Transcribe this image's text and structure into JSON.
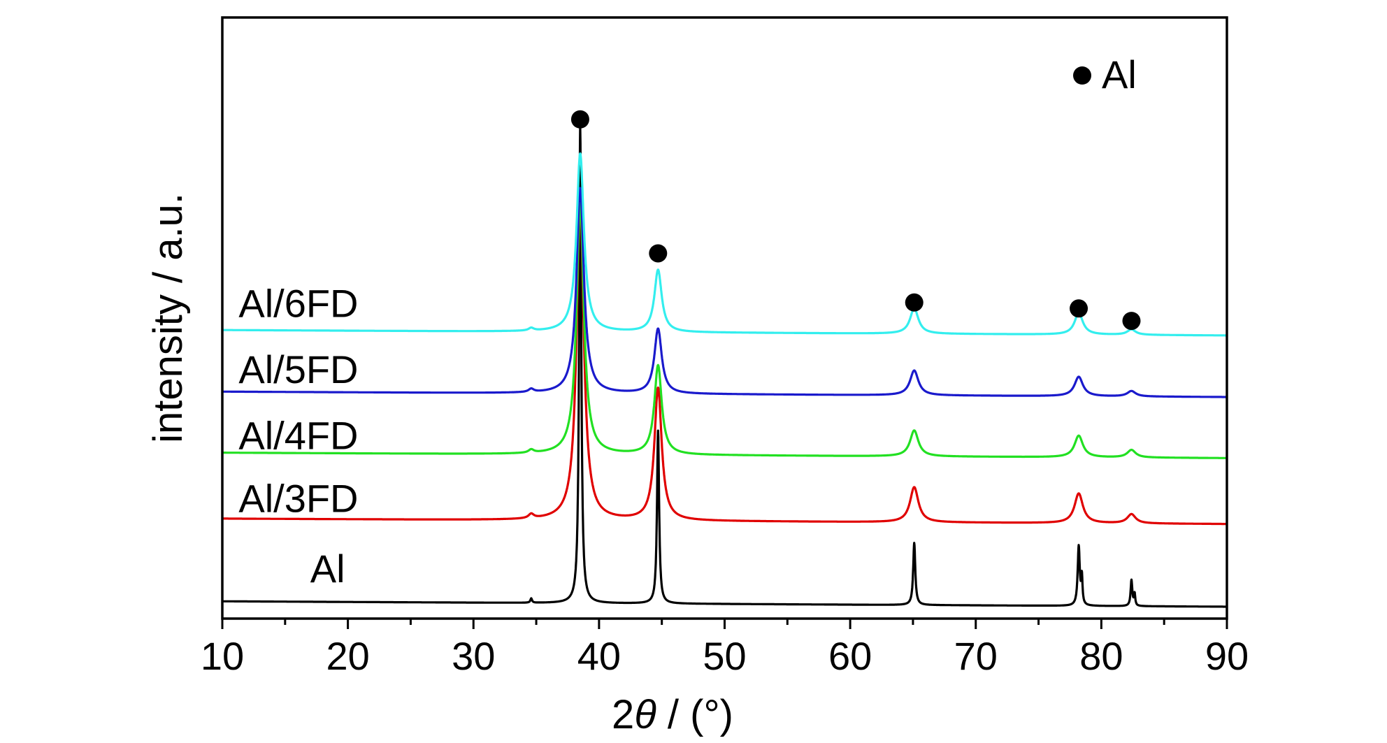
{
  "chart_data": {
    "type": "line",
    "xlabel_prefix": "2",
    "xlabel_symbol": "θ",
    "xlabel_suffix": " / (°)",
    "ylabel": "intensity / a.u.",
    "xlim": [
      10,
      90
    ],
    "xticks": [
      10,
      20,
      30,
      40,
      50,
      60,
      70,
      80,
      90
    ],
    "xtick_labels": [
      "10",
      "20",
      "30",
      "40",
      "50",
      "60",
      "70",
      "80",
      "90"
    ],
    "y_ticks_shown": false,
    "ylim": [
      0,
      100
    ],
    "grid": false,
    "legend": {
      "marker": "filled-circle",
      "label": "Al",
      "placement": "top-right"
    },
    "peak_positions": [
      38.5,
      44.7,
      65.1,
      78.2,
      82.4
    ],
    "series": [
      {
        "name": "Al",
        "color": "#000000",
        "offset": 0,
        "baseline": [
          [
            10,
            1.0
          ],
          [
            90,
            0.0
          ]
        ],
        "peaks": [
          [
            34.6,
            0.8,
            0.08
          ],
          [
            38.5,
            88.5,
            0.1
          ],
          [
            44.7,
            32.0,
            0.1
          ],
          [
            65.1,
            11.5,
            0.1
          ],
          [
            78.2,
            11.0,
            0.1
          ],
          [
            78.45,
            5.0,
            0.06
          ],
          [
            82.4,
            4.8,
            0.08
          ],
          [
            82.65,
            2.2,
            0.06
          ]
        ]
      },
      {
        "name": "Al/3FD",
        "color": "#e00000",
        "offset": 15.5,
        "baseline": [
          [
            10,
            0.8
          ],
          [
            90,
            -0.2
          ]
        ],
        "peaks": [
          [
            34.6,
            0.8,
            0.25
          ],
          [
            38.5,
            58.5,
            0.35
          ],
          [
            44.7,
            24.5,
            0.35
          ],
          [
            65.1,
            6.5,
            0.4
          ],
          [
            78.2,
            5.5,
            0.4
          ],
          [
            82.4,
            1.7,
            0.4
          ]
        ]
      },
      {
        "name": "Al/4FD",
        "color": "#22e022",
        "offset": 27.5,
        "baseline": [
          [
            10,
            1.0
          ],
          [
            90,
            0.0
          ]
        ],
        "peaks": [
          [
            34.6,
            0.6,
            0.25
          ],
          [
            38.5,
            46.5,
            0.35
          ],
          [
            44.7,
            16.5,
            0.35
          ],
          [
            65.1,
            4.8,
            0.4
          ],
          [
            78.2,
            4.0,
            0.4
          ],
          [
            82.4,
            1.4,
            0.4
          ]
        ]
      },
      {
        "name": "Al/5FD",
        "color": "#1a1acc",
        "offset": 38.8,
        "baseline": [
          [
            10,
            1.0
          ],
          [
            90,
            0.0
          ]
        ],
        "peaks": [
          [
            34.6,
            0.6,
            0.25
          ],
          [
            38.5,
            38.0,
            0.35
          ],
          [
            44.7,
            12.0,
            0.35
          ],
          [
            65.1,
            4.6,
            0.4
          ],
          [
            78.2,
            3.6,
            0.4
          ],
          [
            82.4,
            1.0,
            0.4
          ]
        ]
      },
      {
        "name": "Al/6FD",
        "color": "#33eeee",
        "offset": 50.2,
        "baseline": [
          [
            10,
            1.0
          ],
          [
            90,
            0.0
          ]
        ],
        "peaks": [
          [
            34.6,
            0.5,
            0.25
          ],
          [
            38.5,
            33.0,
            0.35
          ],
          [
            44.7,
            11.5,
            0.35
          ],
          [
            65.1,
            4.7,
            0.4
          ],
          [
            78.2,
            4.0,
            0.4
          ],
          [
            82.4,
            1.0,
            0.4
          ]
        ]
      }
    ],
    "series_labels": [
      {
        "text": "Al",
        "x": 17.0,
        "y": 4.5
      },
      {
        "text": "Al/3FD",
        "x": 11.3,
        "y": 17.5
      },
      {
        "text": "Al/4FD",
        "x": 11.3,
        "y": 29.2
      },
      {
        "text": "Al/5FD",
        "x": 11.3,
        "y": 41.4
      },
      {
        "text": "Al/6FD",
        "x": 11.3,
        "y": 53.6
      }
    ],
    "peak_markers": [
      {
        "x": 38.5,
        "y": 90.2
      },
      {
        "x": 44.7,
        "y": 65.4
      },
      {
        "x": 65.1,
        "y": 56.3
      },
      {
        "x": 78.2,
        "y": 55.2
      },
      {
        "x": 82.4,
        "y": 52.9
      }
    ]
  }
}
